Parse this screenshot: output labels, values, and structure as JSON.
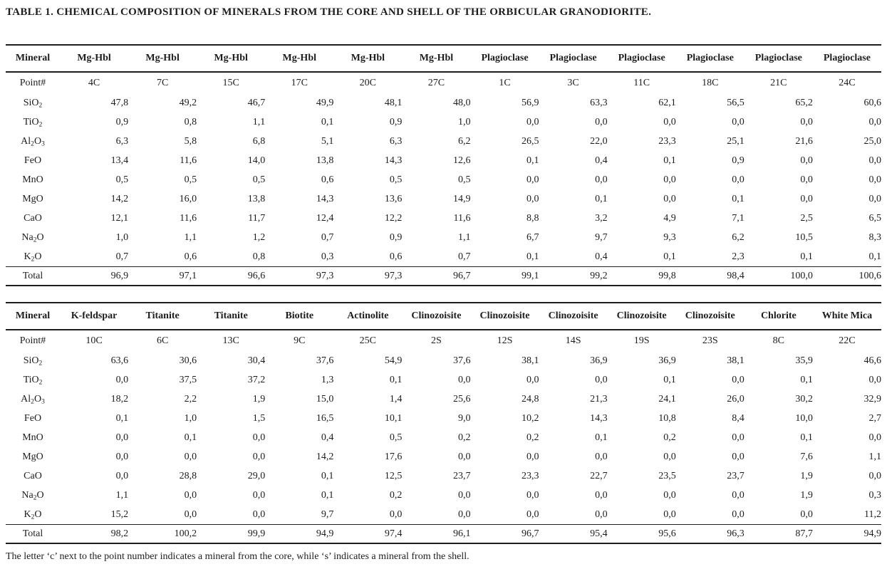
{
  "title": "TABLE 1. CHEMICAL COMPOSITION OF MINERALS FROM THE CORE AND SHELL OF THE ORBICULAR GRANODIORITE.",
  "footnote": "The letter ‘c’ next to the point number indicates a mineral from the core, while ‘s’ indicates a mineral from the shell.",
  "labels": {
    "mineral": "Mineral",
    "point": "Point#",
    "total": "Total"
  },
  "oxide_labels": [
    "SiO₂",
    "TiO₂",
    "Al₂O₃",
    "FeO",
    "MnO",
    "MgO",
    "CaO",
    "Na₂O",
    "K₂O"
  ],
  "tables": [
    {
      "minerals": [
        "Mg-Hbl",
        "Mg-Hbl",
        "Mg-Hbl",
        "Mg-Hbl",
        "Mg-Hbl",
        "Mg-Hbl",
        "Plagioclase",
        "Plagioclase",
        "Plagioclase",
        "Plagioclase",
        "Plagioclase",
        "Plagioclase"
      ],
      "points": [
        "4C",
        "7C",
        "15C",
        "17C",
        "20C",
        "27C",
        "1C",
        "3C",
        "11C",
        "18C",
        "21C",
        "24C"
      ],
      "rows": [
        [
          "47,8",
          "49,2",
          "46,7",
          "49,9",
          "48,1",
          "48,0",
          "56,9",
          "63,3",
          "62,1",
          "56,5",
          "65,2",
          "60,6"
        ],
        [
          "0,9",
          "0,8",
          "1,1",
          "0,1",
          "0,9",
          "1,0",
          "0,0",
          "0,0",
          "0,0",
          "0,0",
          "0,0",
          "0,0"
        ],
        [
          "6,3",
          "5,8",
          "6,8",
          "5,1",
          "6,3",
          "6,2",
          "26,5",
          "22,0",
          "23,3",
          "25,1",
          "21,6",
          "25,0"
        ],
        [
          "13,4",
          "11,6",
          "14,0",
          "13,8",
          "14,3",
          "12,6",
          "0,1",
          "0,4",
          "0,1",
          "0,9",
          "0,0",
          "0,0"
        ],
        [
          "0,5",
          "0,5",
          "0,5",
          "0,6",
          "0,5",
          "0,5",
          "0,0",
          "0,0",
          "0,0",
          "0,0",
          "0,0",
          "0,0"
        ],
        [
          "14,2",
          "16,0",
          "13,8",
          "14,3",
          "13,6",
          "14,9",
          "0,0",
          "0,1",
          "0,0",
          "0,1",
          "0,0",
          "0,0"
        ],
        [
          "12,1",
          "11,6",
          "11,7",
          "12,4",
          "12,2",
          "11,6",
          "8,8",
          "3,2",
          "4,9",
          "7,1",
          "2,5",
          "6,5"
        ],
        [
          "1,0",
          "1,1",
          "1,2",
          "0,7",
          "0,9",
          "1,1",
          "6,7",
          "9,7",
          "9,3",
          "6,2",
          "10,5",
          "8,3"
        ],
        [
          "0,7",
          "0,6",
          "0,8",
          "0,3",
          "0,6",
          "0,7",
          "0,1",
          "0,4",
          "0,1",
          "2,3",
          "0,1",
          "0,1"
        ]
      ],
      "totals": [
        "96,9",
        "97,1",
        "96,6",
        "97,3",
        "97,3",
        "96,7",
        "99,1",
        "99,2",
        "99,8",
        "98,4",
        "100,0",
        "100,6"
      ]
    },
    {
      "minerals": [
        "K-feldspar",
        "Titanite",
        "Titanite",
        "Biotite",
        "Actinolite",
        "Clinozoisite",
        "Clinozoisite",
        "Clinozoisite",
        "Clinozoisite",
        "Clinozoisite",
        "Chlorite",
        "White Mica"
      ],
      "points": [
        "10C",
        "6C",
        "13C",
        "9C",
        "25C",
        "2S",
        "12S",
        "14S",
        "19S",
        "23S",
        "8C",
        "22C"
      ],
      "rows": [
        [
          "63,6",
          "30,6",
          "30,4",
          "37,6",
          "54,9",
          "37,6",
          "38,1",
          "36,9",
          "36,9",
          "38,1",
          "35,9",
          "46,6"
        ],
        [
          "0,0",
          "37,5",
          "37,2",
          "1,3",
          "0,1",
          "0,0",
          "0,0",
          "0,0",
          "0,1",
          "0,0",
          "0,1",
          "0,0"
        ],
        [
          "18,2",
          "2,2",
          "1,9",
          "15,0",
          "1,4",
          "25,6",
          "24,8",
          "21,3",
          "24,1",
          "26,0",
          "30,2",
          "32,9"
        ],
        [
          "0,1",
          "1,0",
          "1,5",
          "16,5",
          "10,1",
          "9,0",
          "10,2",
          "14,3",
          "10,8",
          "8,4",
          "10,0",
          "2,7"
        ],
        [
          "0,0",
          "0,1",
          "0,0",
          "0,4",
          "0,5",
          "0,2",
          "0,2",
          "0,1",
          "0,2",
          "0,0",
          "0,1",
          "0,0"
        ],
        [
          "0,0",
          "0,0",
          "0,0",
          "14,2",
          "17,6",
          "0,0",
          "0,0",
          "0,0",
          "0,0",
          "0,0",
          "7,6",
          "1,1"
        ],
        [
          "0,0",
          "28,8",
          "29,0",
          "0,1",
          "12,5",
          "23,7",
          "23,3",
          "22,7",
          "23,5",
          "23,7",
          "1,9",
          "0,0"
        ],
        [
          "1,1",
          "0,0",
          "0,0",
          "0,1",
          "0,2",
          "0,0",
          "0,0",
          "0,0",
          "0,0",
          "0,0",
          "1,9",
          "0,3"
        ],
        [
          "15,2",
          "0,0",
          "0,0",
          "9,7",
          "0,0",
          "0,0",
          "0,0",
          "0,0",
          "0,0",
          "0,0",
          "0,0",
          "11,2"
        ]
      ],
      "totals": [
        "98,2",
        "100,2",
        "99,9",
        "94,9",
        "97,4",
        "96,1",
        "96,7",
        "95,4",
        "95,6",
        "96,3",
        "87,7",
        "94,9"
      ]
    }
  ]
}
